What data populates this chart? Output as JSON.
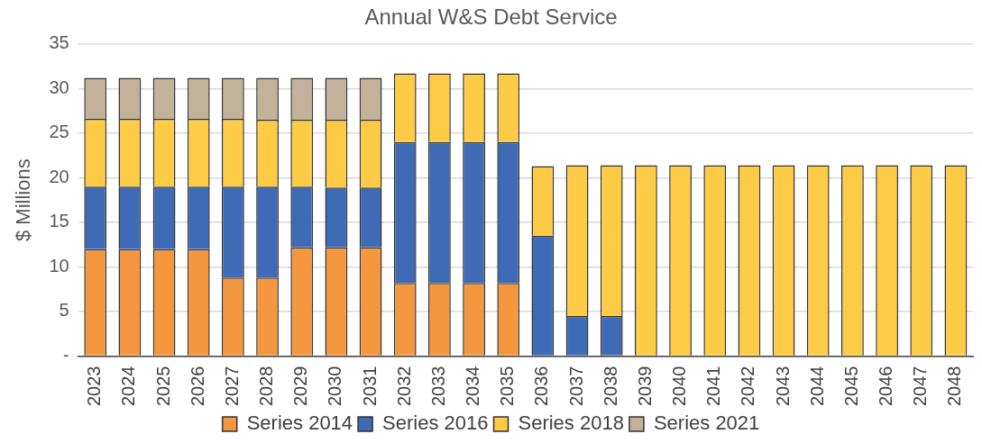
{
  "chart_data": {
    "type": "bar",
    "title": "Annual W&S Debt Service",
    "ylabel": "$ Millions",
    "categories": [
      "2023",
      "2024",
      "2025",
      "2026",
      "2027",
      "2028",
      "2029",
      "2030",
      "2031",
      "2032",
      "2033",
      "2034",
      "2035",
      "2036",
      "2037",
      "2038",
      "2039",
      "2040",
      "2041",
      "2042",
      "2043",
      "2044",
      "2045",
      "2046",
      "2047",
      "2048"
    ],
    "stacked": true,
    "legend": "bottom",
    "grid": "y",
    "ylim": [
      0,
      35
    ],
    "yticks": [
      {
        "value": 0,
        "label": "-"
      },
      5,
      10,
      15,
      20,
      25,
      30,
      35
    ],
    "series": [
      {
        "name": "Series 2014",
        "color": "#f4973f",
        "values": [
          12.0,
          12.0,
          12.0,
          12.0,
          8.8,
          8.8,
          12.2,
          12.2,
          12.2,
          8.2,
          8.2,
          8.2,
          8.2,
          null,
          null,
          null,
          null,
          null,
          null,
          null,
          null,
          null,
          null,
          null,
          null,
          null
        ]
      },
      {
        "name": "Series 2016",
        "color": "#3f6ab5",
        "values": [
          7.0,
          7.0,
          7.0,
          7.0,
          10.2,
          10.2,
          6.8,
          6.7,
          6.7,
          15.8,
          15.8,
          15.8,
          15.8,
          13.5,
          4.5,
          4.5,
          null,
          null,
          null,
          null,
          null,
          null,
          null,
          null,
          null,
          null
        ]
      },
      {
        "name": "Series 2018",
        "color": "#fecb46",
        "values": [
          7.6,
          7.6,
          7.6,
          7.6,
          7.6,
          7.5,
          7.5,
          7.6,
          7.6,
          7.7,
          7.7,
          7.7,
          7.7,
          7.8,
          16.9,
          16.9,
          21.4,
          21.4,
          21.4,
          21.4,
          21.4,
          21.4,
          21.4,
          21.4,
          21.4,
          21.4
        ]
      },
      {
        "name": "Series 2021",
        "color": "#c2b29a",
        "values": [
          4.6,
          4.6,
          4.6,
          4.6,
          4.6,
          4.7,
          4.7,
          4.7,
          4.7,
          null,
          null,
          null,
          null,
          null,
          null,
          null,
          null,
          null,
          null,
          null,
          null,
          null,
          null,
          null,
          null,
          null
        ]
      }
    ]
  }
}
